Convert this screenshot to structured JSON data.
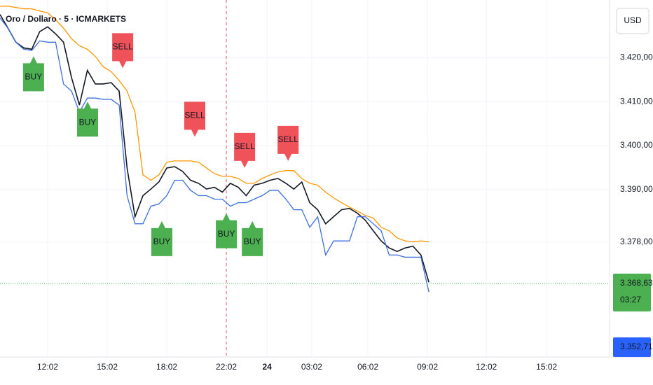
{
  "chart_data": {
    "type": "line",
    "title": "Oro / Dollaro · 5 · ICMARKETS",
    "currency": "USD",
    "x": [
      9.6,
      10,
      10.4,
      10.8,
      11.2,
      11.6,
      12,
      12.4,
      12.8,
      13.2,
      13.6,
      14,
      14.4,
      14.8,
      15.2,
      15.6,
      16,
      16.4,
      16.8,
      17.2,
      17.6,
      18,
      18.4,
      18.8,
      19.2,
      19.6,
      20,
      20.4,
      20.8,
      21.2,
      21.6,
      22,
      22.4,
      22.8,
      23.2,
      23.6,
      24,
      24.4,
      24.8,
      25.2,
      25.6,
      26,
      26.4,
      26.8,
      27.2,
      27.6,
      28,
      28.4,
      28.8,
      29.2,
      29.6,
      30,
      30.4,
      30.8,
      31.2
    ],
    "series": [
      {
        "color": "#131722",
        "values": [
          3429.8,
          3426.7,
          3423.5,
          3422.2,
          3421.9,
          3425.9,
          3427.0,
          3425.4,
          3423.5,
          3415.5,
          3409.2,
          3417.1,
          3414.0,
          3414.0,
          3414.3,
          3412.4,
          3394.9,
          3383.8,
          3388.6,
          3390.1,
          3391.7,
          3394.9,
          3395.2,
          3394.1,
          3392.1,
          3391.4,
          3390.1,
          3390.5,
          3389.4,
          3391.4,
          3390.5,
          3388.6,
          3391.0,
          3391.4,
          3392.1,
          3392.5,
          3391.4,
          3390.1,
          3391.7,
          3387.0,
          3385.4,
          3382.2,
          3383.8,
          3385.4,
          3385.7,
          3384.6,
          3383.0,
          3380.6,
          3378.3,
          3376.7,
          3375.9,
          3376.7,
          3377.1,
          3375.1,
          3368.9
        ]
      },
      {
        "color": "#ff9800",
        "values": [
          3431.7,
          3431.7,
          3431.4,
          3431.1,
          3431.1,
          3430.6,
          3430.2,
          3428.6,
          3426.7,
          3424.3,
          3422.7,
          3421.9,
          3420.3,
          3417.9,
          3416.8,
          3414.8,
          3412.4,
          3407.6,
          3393.3,
          3392.1,
          3393.3,
          3396.2,
          3396.5,
          3396.5,
          3396.5,
          3396.2,
          3394.9,
          3393.6,
          3393.0,
          3393.0,
          3392.5,
          3391.4,
          3391.4,
          3392.5,
          3393.3,
          3394.0,
          3394.3,
          3394.3,
          3392.5,
          3391.4,
          3391.0,
          3389.4,
          3388.1,
          3387.0,
          3386.0,
          3385.1,
          3384.1,
          3383.5,
          3381.4,
          3380.6,
          3379.0,
          3378.3,
          3378.1,
          3378.3,
          3378.1
        ]
      },
      {
        "color": "#3d6fe0",
        "values": [
          3429.0,
          3426.7,
          3423.5,
          3421.9,
          3421.6,
          3423.8,
          3423.5,
          3423.5,
          3414.0,
          3412.4,
          3407.6,
          3410.8,
          3410.8,
          3410.5,
          3410.5,
          3409.2,
          3388.6,
          3382.2,
          3382.2,
          3386.2,
          3386.7,
          3388.6,
          3392.1,
          3392.1,
          3389.8,
          3388.6,
          3388.6,
          3387.8,
          3387.8,
          3386.2,
          3387.0,
          3387.0,
          3387.8,
          3388.6,
          3389.8,
          3389.8,
          3387.8,
          3385.4,
          3385.4,
          3381.4,
          3383.8,
          3375.1,
          3378.3,
          3378.3,
          3378.3,
          3383.8,
          3383.8,
          3382.2,
          3380.6,
          3375.1,
          3375.1,
          3374.6,
          3374.6,
          3374.6,
          3366.7
        ]
      }
    ],
    "signals": [
      {
        "text": "BUY",
        "x": 11.29,
        "y": 3420.3
      },
      {
        "text": "BUY",
        "x": 14.01,
        "y": 3410.0
      },
      {
        "text": "SELL",
        "x": 15.78,
        "y": 3417.6
      },
      {
        "text": "BUY",
        "x": 17.75,
        "y": 3382.8
      },
      {
        "text": "SELL",
        "x": 19.41,
        "y": 3402.0
      },
      {
        "text": "BUY",
        "x": 21.0,
        "y": 3384.6
      },
      {
        "text": "SELL",
        "x": 21.92,
        "y": 3394.9
      },
      {
        "text": "BUY",
        "x": 22.31,
        "y": 3382.8
      },
      {
        "text": "SELL",
        "x": 24.11,
        "y": 3396.5
      }
    ],
    "last_price": {
      "value": 3368.63,
      "label": "3.368,63",
      "countdown": "03:27"
    },
    "marked_price": {
      "value": 3352.71,
      "label": "3.352,71"
    },
    "xlim": [
      9.6,
      40.3
    ],
    "ylim": [
      3351.9,
      3433.1
    ],
    "xticks": [
      {
        "value": 12,
        "label": "12:02"
      },
      {
        "value": 15,
        "label": "15:02"
      },
      {
        "value": 18,
        "label": "18:02"
      },
      {
        "value": 21,
        "label": "22:02"
      },
      {
        "value": 23.05,
        "label": "24"
      },
      {
        "value": 25.3,
        "label": "03:02"
      },
      {
        "value": 28.13,
        "label": "06:02"
      },
      {
        "value": 31.13,
        "label": "09:02"
      },
      {
        "value": 34.1,
        "label": "12:02"
      },
      {
        "value": 37.13,
        "label": "15:02"
      }
    ],
    "yticks": [
      {
        "value": 3420,
        "label": "3.420,00"
      },
      {
        "value": 3410,
        "label": "3.410,00"
      },
      {
        "value": 3400,
        "label": "3.400,00"
      },
      {
        "value": 3390,
        "label": "3.390,00"
      },
      {
        "value": 3378,
        "label": "3.378,00"
      }
    ],
    "grid": true
  }
}
